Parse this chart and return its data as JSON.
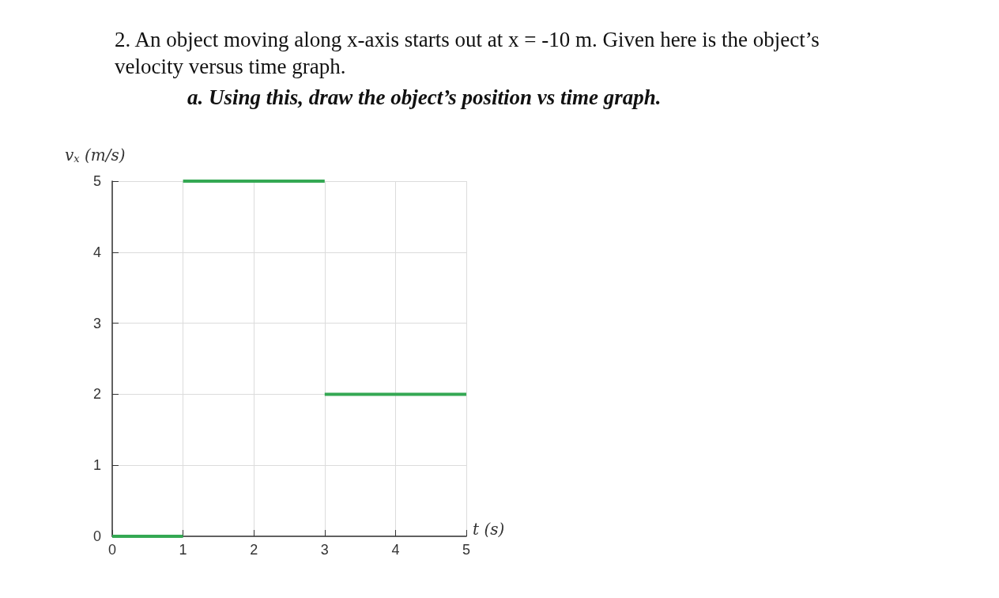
{
  "chart_data": {
    "type": "line",
    "title": "2. An object moving along x-axis starts out at x = -10 m. Given here is the object’s velocity versus time graph.",
    "subtitle": "a. Using this, draw the object’s position vs time graph.",
    "xlabel": "t (s)",
    "ylabel": "v$_{x}$ (m/s)",
    "series": [
      {
        "color": "#34a853",
        "x": [
          0,
          1
        ],
        "values": [
          0,
          0
        ]
      },
      {
        "color": "#34a853",
        "x": [
          1,
          3
        ],
        "values": [
          5,
          5
        ]
      },
      {
        "color": "#34a853",
        "x": [
          3,
          5
        ],
        "values": [
          2,
          2
        ]
      }
    ],
    "xlim": [
      0,
      5
    ],
    "xticks": [
      0,
      1,
      2,
      3,
      4,
      5
    ],
    "ylim": [
      0,
      5
    ],
    "yticks": [
      0,
      1,
      2,
      3,
      4,
      5
    ],
    "grid": true
  }
}
